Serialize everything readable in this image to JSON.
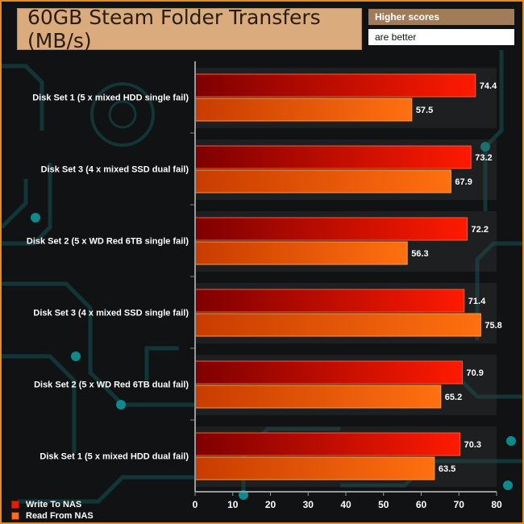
{
  "title": "60GB Steam Folder Transfers (MB/s)",
  "note": {
    "line1": "Higher scores",
    "line2": "are better"
  },
  "colors": {
    "series1": "#e81a00",
    "series2": "#ff6e10",
    "accent": "#e08a2a"
  },
  "chart_data": {
    "type": "bar",
    "orientation": "horizontal",
    "categories": [
      "Disk Set 1 (5 x mixed HDD single fail)",
      "Disk Set 3 (4 x mixed SSD dual fail)",
      "Disk Set 2 (5 x WD Red 6TB single fail)",
      "Disk Set 3 (4 x mixed SSD single fail)",
      "Disk Set 2 (5 x WD Red 6TB dual fail)",
      "Disk Set 1 (5 x mixed HDD dual fail)"
    ],
    "series": [
      {
        "name": "Write To NAS",
        "values": [
          74.4,
          73.2,
          72.2,
          71.4,
          70.9,
          70.3
        ]
      },
      {
        "name": "Read From NAS",
        "values": [
          57.5,
          67.9,
          56.3,
          75.8,
          65.2,
          63.5
        ]
      }
    ],
    "xlim": [
      0,
      80
    ],
    "xticks": [
      0,
      10,
      20,
      30,
      40,
      50,
      60,
      70,
      80
    ],
    "title": "60GB Steam Folder Transfers (MB/s)",
    "legend_position": "bottom-left"
  }
}
